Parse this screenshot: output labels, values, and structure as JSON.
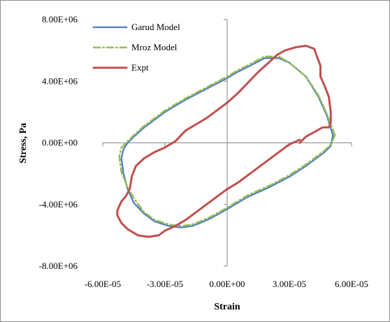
{
  "chart_data": {
    "type": "scatter",
    "title": "",
    "xlabel": "Strain",
    "ylabel": "Stress, Pa",
    "xlim": [
      -6e-05,
      6e-05
    ],
    "ylim": [
      -8000000,
      8000000
    ],
    "x_ticks": [
      -6e-05,
      -3e-05,
      0,
      3e-05,
      6e-05
    ],
    "x_tick_labels": [
      "-6.00E-05",
      "-3.00E-05",
      "0.00E+00",
      "3.00E-05",
      "6.00E-05"
    ],
    "y_ticks": [
      -8000000,
      -4000000,
      0,
      4000000,
      8000000
    ],
    "y_tick_labels": [
      "-8.00E+06",
      "-4.00E+06",
      "0.00E+00",
      "4.00E+06",
      "8.00E+06"
    ],
    "grid": false,
    "legend_position": "top-left",
    "series": [
      {
        "name": "Garud Model",
        "color": "#4f81bd",
        "line_style": "dotted",
        "x": [
          5.1e-05,
          4.8e-05,
          4.4e-05,
          3.8e-05,
          3e-05,
          2.5e-05,
          1.8e-05,
          1.1e-05,
          5e-06,
          0,
          -1e-05,
          -2e-05,
          -3e-05,
          -4e-05,
          -4.5e-05,
          -4.8e-05,
          -5e-05,
          -5.1e-05,
          -5e-05,
          -4.8e-05,
          -4.5e-05,
          -4e-05,
          -3.5e-05,
          -2.8e-05,
          -2.2e-05,
          -1.7e-05,
          -1.3e-05,
          -8e-06,
          -4e-06,
          0,
          5e-06,
          1e-05,
          2e-05,
          3e-05,
          3.8e-05,
          4.3e-05,
          4.7e-05,
          5e-05,
          5.1e-05
        ],
        "y": [
          500000,
          1800000,
          3000000,
          4300000,
          5200000,
          5500000,
          5500000,
          5000000,
          4600000,
          4200000,
          3500000,
          2800000,
          2000000,
          1000000,
          400000,
          0,
          -400000,
          -1000000,
          -2000000,
          -3000000,
          -3900000,
          -4600000,
          -5100000,
          -5400000,
          -5500000,
          -5400000,
          -5200000,
          -4900000,
          -4600000,
          -4300000,
          -3900000,
          -3500000,
          -2900000,
          -2200000,
          -1500000,
          -1000000,
          -600000,
          -200000,
          500000
        ]
      },
      {
        "name": "Mroz Model",
        "color": "#9bbb59",
        "line_style": "dashdot",
        "x": [
          5.2e-05,
          4.8e-05,
          4.4e-05,
          3.8e-05,
          3e-05,
          2.5e-05,
          1.8e-05,
          1.1e-05,
          5e-06,
          0,
          -1e-05,
          -2e-05,
          -3e-05,
          -4e-05,
          -4.5e-05,
          -4.8e-05,
          -5.1e-05,
          -5.2e-05,
          -5.1e-05,
          -4.8e-05,
          -4.4e-05,
          -4e-05,
          -3.5e-05,
          -2.8e-05,
          -2.2e-05,
          -1.7e-05,
          -1.3e-05,
          -8e-06,
          -4e-06,
          0,
          5e-06,
          1e-05,
          2e-05,
          3e-05,
          3.8e-05,
          4.3e-05,
          4.7e-05,
          5e-05,
          5.2e-05
        ],
        "y": [
          500000,
          1900000,
          3100000,
          4300000,
          5200000,
          5600000,
          5600000,
          5100000,
          4700000,
          4300000,
          3600000,
          2900000,
          2100000,
          1100000,
          500000,
          100000,
          -300000,
          -900000,
          -1900000,
          -2900000,
          -3800000,
          -4500000,
          -5000000,
          -5300000,
          -5400000,
          -5300000,
          -5100000,
          -4800000,
          -4500000,
          -4200000,
          -3800000,
          -3400000,
          -2800000,
          -2100000,
          -1400000,
          -900000,
          -500000,
          -100000,
          500000
        ]
      },
      {
        "name": "Expt",
        "color": "#c0504d",
        "line_style": "solid",
        "x": [
          3.5e-05,
          3.8e-05,
          4.2e-05,
          4.6e-05,
          4.9e-05,
          5e-05,
          5e-05,
          4.9e-05,
          4.7e-05,
          4.5e-05,
          4.5e-05,
          4.3e-05,
          4.2e-05,
          3.8e-05,
          3.3e-05,
          2.8e-05,
          2.4e-05,
          2e-05,
          1.5e-05,
          1e-05,
          5e-06,
          0,
          -5e-06,
          -1e-05,
          -1.5e-05,
          -2e-05,
          -2.5e-05,
          -3e-05,
          -3.5e-05,
          -4e-05,
          -4.4e-05,
          -4.6e-05,
          -4.7e-05,
          -4.9e-05,
          -5.1e-05,
          -5.3e-05,
          -5.3e-05,
          -5.1e-05,
          -4.8e-05,
          -4.3e-05,
          -3.8e-05,
          -3.3e-05,
          -3e-05,
          -2.5e-05,
          -2e-05,
          -1.5e-05,
          -1e-05,
          -5e-06,
          0,
          5e-06,
          1e-05,
          1.5e-05,
          2e-05,
          2.5e-05,
          3e-05,
          3.5e-05
        ],
        "y": [
          0,
          400000,
          700000,
          1000000,
          1000000,
          1300000,
          2000000,
          3000000,
          3700000,
          4300000,
          5000000,
          5700000,
          6100000,
          6300000,
          6200000,
          6000000,
          5700000,
          5200000,
          4600000,
          3900000,
          3200000,
          2600000,
          2100000,
          1600000,
          1200000,
          800000,
          100000,
          -300000,
          -600000,
          -1000000,
          -1500000,
          -2200000,
          -3000000,
          -3500000,
          -3800000,
          -4400000,
          -4700000,
          -5200000,
          -5600000,
          -6000000,
          -6100000,
          -6000000,
          -5700000,
          -5400000,
          -5000000,
          -4500000,
          -4000000,
          -3500000,
          -3000000,
          -2600000,
          -2100000,
          -1600000,
          -1100000,
          -600000,
          -100000,
          200000
        ]
      }
    ]
  }
}
